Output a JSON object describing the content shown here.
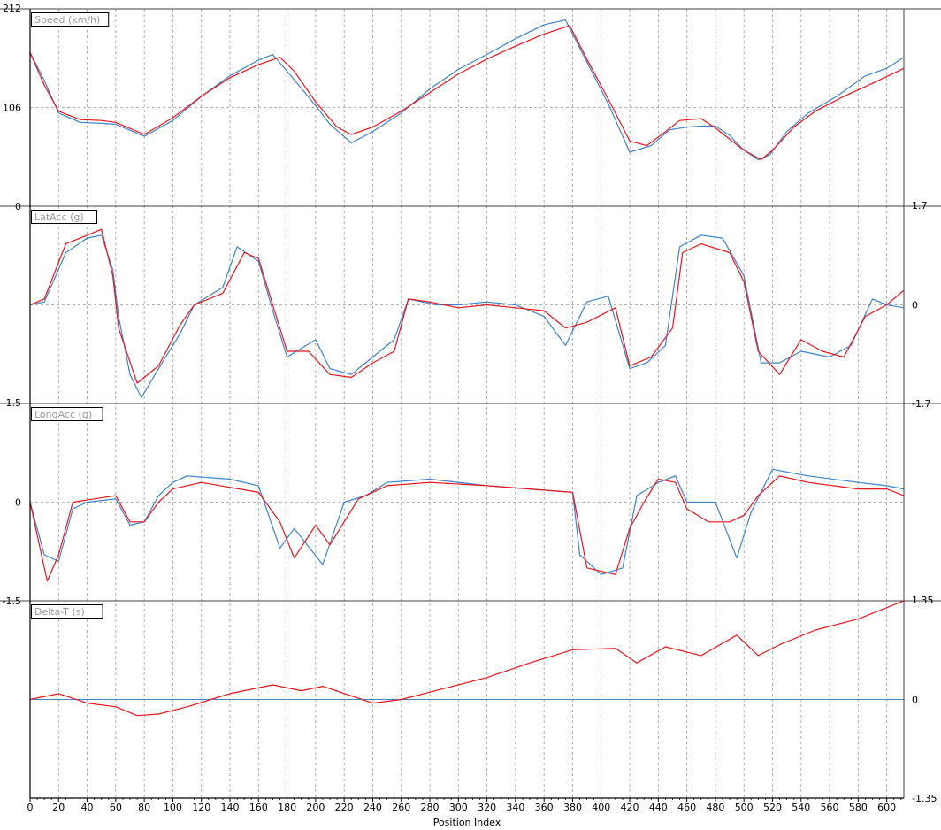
{
  "chart_data": {
    "type": "line",
    "xlabel": "Position Index",
    "xlim": [
      0,
      612
    ],
    "xticks": [
      0,
      20,
      40,
      60,
      80,
      100,
      120,
      140,
      160,
      180,
      200,
      220,
      240,
      260,
      280,
      300,
      320,
      340,
      360,
      380,
      400,
      420,
      440,
      460,
      480,
      500,
      520,
      540,
      560,
      580,
      600
    ],
    "colors": {
      "red": "#e8141c",
      "blue": "#3e82c8"
    },
    "panels": [
      {
        "title": "Speed (km/h)",
        "ylim": [
          0,
          212
        ],
        "left_ticks": [
          "212",
          "106",
          "0"
        ],
        "right_ticks": [],
        "ref_value": 106,
        "red": [
          [
            0,
            165
          ],
          [
            10,
            130
          ],
          [
            20,
            102
          ],
          [
            35,
            93
          ],
          [
            50,
            92
          ],
          [
            60,
            90
          ],
          [
            80,
            77
          ],
          [
            100,
            95
          ],
          [
            120,
            118
          ],
          [
            140,
            138
          ],
          [
            160,
            152
          ],
          [
            175,
            160
          ],
          [
            185,
            145
          ],
          [
            200,
            112
          ],
          [
            215,
            85
          ],
          [
            225,
            77
          ],
          [
            240,
            85
          ],
          [
            260,
            102
          ],
          [
            280,
            122
          ],
          [
            300,
            142
          ],
          [
            320,
            158
          ],
          [
            340,
            172
          ],
          [
            360,
            185
          ],
          [
            378,
            194
          ],
          [
            390,
            158
          ],
          [
            405,
            115
          ],
          [
            420,
            70
          ],
          [
            432,
            65
          ],
          [
            445,
            80
          ],
          [
            455,
            92
          ],
          [
            470,
            94
          ],
          [
            480,
            84
          ],
          [
            490,
            72
          ],
          [
            500,
            60
          ],
          [
            512,
            50
          ],
          [
            520,
            60
          ],
          [
            535,
            85
          ],
          [
            550,
            102
          ],
          [
            570,
            118
          ],
          [
            590,
            132
          ],
          [
            612,
            148
          ]
        ],
        "blue": [
          [
            0,
            165
          ],
          [
            10,
            135
          ],
          [
            20,
            100
          ],
          [
            35,
            90
          ],
          [
            50,
            89
          ],
          [
            60,
            88
          ],
          [
            80,
            75
          ],
          [
            100,
            92
          ],
          [
            120,
            118
          ],
          [
            140,
            140
          ],
          [
            160,
            157
          ],
          [
            170,
            163
          ],
          [
            180,
            145
          ],
          [
            200,
            108
          ],
          [
            210,
            88
          ],
          [
            225,
            68
          ],
          [
            240,
            80
          ],
          [
            260,
            100
          ],
          [
            280,
            126
          ],
          [
            300,
            147
          ],
          [
            320,
            163
          ],
          [
            340,
            180
          ],
          [
            360,
            195
          ],
          [
            375,
            200
          ],
          [
            390,
            155
          ],
          [
            405,
            110
          ],
          [
            420,
            58
          ],
          [
            435,
            65
          ],
          [
            448,
            82
          ],
          [
            460,
            85
          ],
          [
            470,
            86
          ],
          [
            480,
            86
          ],
          [
            490,
            76
          ],
          [
            500,
            60
          ],
          [
            510,
            50
          ],
          [
            518,
            55
          ],
          [
            530,
            80
          ],
          [
            545,
            100
          ],
          [
            565,
            118
          ],
          [
            585,
            140
          ],
          [
            600,
            148
          ],
          [
            612,
            160
          ]
        ]
      },
      {
        "title": "LatAcc (g)",
        "ylim": [
          -1.7,
          1.7
        ],
        "left_ticks": [],
        "right_ticks": [
          "1.7",
          "0",
          "-1.7"
        ],
        "ref_value": 0,
        "red": [
          [
            0,
            0
          ],
          [
            10,
            0.1
          ],
          [
            25,
            1.05
          ],
          [
            40,
            1.2
          ],
          [
            50,
            1.3
          ],
          [
            58,
            0.5
          ],
          [
            62,
            -0.4
          ],
          [
            75,
            -1.35
          ],
          [
            90,
            -1.05
          ],
          [
            105,
            -0.35
          ],
          [
            115,
            0
          ],
          [
            135,
            0.2
          ],
          [
            150,
            0.9
          ],
          [
            160,
            0.8
          ],
          [
            170,
            0
          ],
          [
            180,
            -0.8
          ],
          [
            195,
            -0.8
          ],
          [
            210,
            -1.2
          ],
          [
            225,
            -1.25
          ],
          [
            240,
            -1.0
          ],
          [
            255,
            -0.8
          ],
          [
            265,
            0.1
          ],
          [
            280,
            0.05
          ],
          [
            300,
            -0.05
          ],
          [
            320,
            0
          ],
          [
            340,
            -0.05
          ],
          [
            360,
            -0.1
          ],
          [
            375,
            -0.4
          ],
          [
            390,
            -0.3
          ],
          [
            410,
            -0.05
          ],
          [
            420,
            -1.05
          ],
          [
            435,
            -0.9
          ],
          [
            450,
            -0.4
          ],
          [
            457,
            0.9
          ],
          [
            470,
            1.05
          ],
          [
            490,
            0.9
          ],
          [
            500,
            0.4
          ],
          [
            510,
            -0.8
          ],
          [
            525,
            -1.2
          ],
          [
            540,
            -0.6
          ],
          [
            555,
            -0.8
          ],
          [
            570,
            -0.9
          ],
          [
            585,
            -0.2
          ],
          [
            600,
            0
          ],
          [
            612,
            0.25
          ]
        ],
        "blue": [
          [
            0,
            0
          ],
          [
            10,
            0.05
          ],
          [
            25,
            0.9
          ],
          [
            40,
            1.15
          ],
          [
            50,
            1.2
          ],
          [
            58,
            0.6
          ],
          [
            62,
            -0.2
          ],
          [
            70,
            -1.2
          ],
          [
            78,
            -1.6
          ],
          [
            90,
            -1.1
          ],
          [
            105,
            -0.5
          ],
          [
            115,
            0
          ],
          [
            135,
            0.3
          ],
          [
            145,
            1.0
          ],
          [
            160,
            0.75
          ],
          [
            170,
            -0.1
          ],
          [
            180,
            -0.9
          ],
          [
            200,
            -0.6
          ],
          [
            210,
            -1.1
          ],
          [
            225,
            -1.2
          ],
          [
            240,
            -0.9
          ],
          [
            255,
            -0.6
          ],
          [
            265,
            0.1
          ],
          [
            285,
            0
          ],
          [
            300,
            0
          ],
          [
            320,
            0.05
          ],
          [
            340,
            0
          ],
          [
            360,
            -0.2
          ],
          [
            375,
            -0.7
          ],
          [
            390,
            0.05
          ],
          [
            405,
            0.15
          ],
          [
            420,
            -1.1
          ],
          [
            432,
            -1.0
          ],
          [
            445,
            -0.7
          ],
          [
            455,
            1.0
          ],
          [
            470,
            1.2
          ],
          [
            485,
            1.15
          ],
          [
            500,
            0.5
          ],
          [
            512,
            -1.0
          ],
          [
            525,
            -1.0
          ],
          [
            540,
            -0.8
          ],
          [
            560,
            -0.9
          ],
          [
            575,
            -0.7
          ],
          [
            590,
            0.1
          ],
          [
            600,
            0
          ],
          [
            612,
            -0.05
          ]
        ]
      },
      {
        "title": "LongAcc (g)",
        "ylim": [
          -1.5,
          1.5
        ],
        "left_ticks": [
          "1.5",
          "0",
          "-1.5"
        ],
        "right_ticks": [],
        "ref_value": 0,
        "red": [
          [
            0,
            0
          ],
          [
            5,
            -0.5
          ],
          [
            12,
            -1.2
          ],
          [
            20,
            -0.8
          ],
          [
            30,
            0
          ],
          [
            45,
            0.05
          ],
          [
            60,
            0.1
          ],
          [
            70,
            -0.3
          ],
          [
            80,
            -0.3
          ],
          [
            90,
            0
          ],
          [
            100,
            0.2
          ],
          [
            120,
            0.3
          ],
          [
            160,
            0.15
          ],
          [
            175,
            -0.3
          ],
          [
            185,
            -0.85
          ],
          [
            200,
            -0.35
          ],
          [
            210,
            -0.65
          ],
          [
            230,
            0.05
          ],
          [
            250,
            0.25
          ],
          [
            280,
            0.3
          ],
          [
            320,
            0.25
          ],
          [
            380,
            0.15
          ],
          [
            390,
            -1.0
          ],
          [
            410,
            -1.1
          ],
          [
            420,
            -0.4
          ],
          [
            430,
            0
          ],
          [
            440,
            0.35
          ],
          [
            452,
            0.3
          ],
          [
            460,
            -0.1
          ],
          [
            475,
            -0.3
          ],
          [
            490,
            -0.3
          ],
          [
            500,
            -0.2
          ],
          [
            510,
            0.1
          ],
          [
            525,
            0.4
          ],
          [
            545,
            0.3
          ],
          [
            580,
            0.2
          ],
          [
            600,
            0.2
          ],
          [
            612,
            0.1
          ]
        ],
        "blue": [
          [
            0,
            0
          ],
          [
            10,
            -0.8
          ],
          [
            20,
            -0.9
          ],
          [
            30,
            -0.1
          ],
          [
            40,
            0
          ],
          [
            60,
            0.05
          ],
          [
            70,
            -0.35
          ],
          [
            80,
            -0.3
          ],
          [
            90,
            0.1
          ],
          [
            100,
            0.3
          ],
          [
            110,
            0.4
          ],
          [
            140,
            0.35
          ],
          [
            160,
            0.25
          ],
          [
            175,
            -0.7
          ],
          [
            185,
            -0.4
          ],
          [
            205,
            -0.95
          ],
          [
            220,
            0
          ],
          [
            235,
            0.1
          ],
          [
            250,
            0.3
          ],
          [
            280,
            0.35
          ],
          [
            320,
            0.25
          ],
          [
            380,
            0.15
          ],
          [
            385,
            -0.8
          ],
          [
            400,
            -1.1
          ],
          [
            415,
            -1.0
          ],
          [
            425,
            0.1
          ],
          [
            440,
            0.3
          ],
          [
            452,
            0.4
          ],
          [
            460,
            0
          ],
          [
            480,
            0
          ],
          [
            495,
            -0.85
          ],
          [
            505,
            -0.15
          ],
          [
            520,
            0.5
          ],
          [
            545,
            0.4
          ],
          [
            580,
            0.3
          ],
          [
            600,
            0.25
          ],
          [
            612,
            0.2
          ]
        ]
      },
      {
        "title": "Delta-T (s)",
        "ylim": [
          -1.35,
          1.35
        ],
        "left_ticks": [],
        "right_ticks": [
          "1.35",
          "0",
          "-1.35"
        ],
        "ref_value": 0,
        "red": [
          [
            0,
            0
          ],
          [
            20,
            0.08
          ],
          [
            40,
            -0.05
          ],
          [
            60,
            -0.1
          ],
          [
            75,
            -0.22
          ],
          [
            90,
            -0.2
          ],
          [
            110,
            -0.1
          ],
          [
            140,
            0.08
          ],
          [
            170,
            0.2
          ],
          [
            190,
            0.12
          ],
          [
            205,
            0.18
          ],
          [
            225,
            0.05
          ],
          [
            240,
            -0.05
          ],
          [
            260,
            0
          ],
          [
            290,
            0.15
          ],
          [
            320,
            0.3
          ],
          [
            350,
            0.5
          ],
          [
            380,
            0.68
          ],
          [
            410,
            0.7
          ],
          [
            425,
            0.5
          ],
          [
            445,
            0.72
          ],
          [
            470,
            0.6
          ],
          [
            495,
            0.88
          ],
          [
            510,
            0.6
          ],
          [
            525,
            0.75
          ],
          [
            550,
            0.95
          ],
          [
            580,
            1.1
          ],
          [
            612,
            1.35
          ]
        ],
        "blue": [
          [
            0,
            0
          ],
          [
            612,
            0
          ]
        ]
      }
    ]
  }
}
